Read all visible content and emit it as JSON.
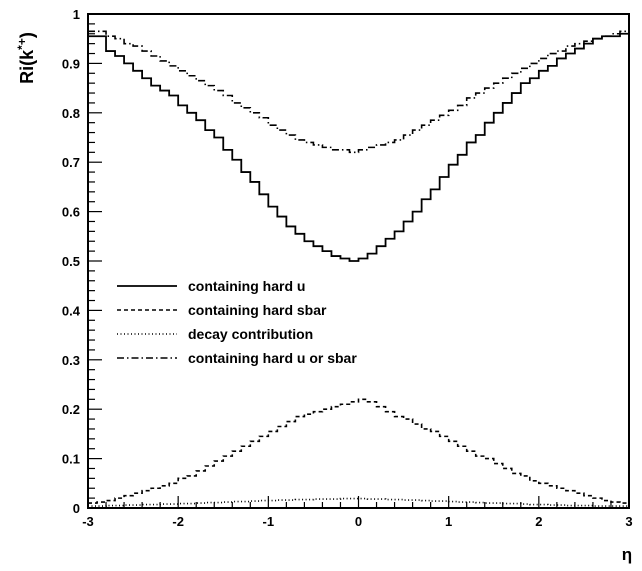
{
  "chart_data": {
    "type": "line",
    "title": "",
    "xlabel": "η",
    "ylabel": "Ri(k*+)",
    "xlim": [
      -3,
      3
    ],
    "ylim": [
      0,
      1
    ],
    "x_ticks": [
      "-3",
      "-2",
      "-1",
      "0",
      "1",
      "2",
      "3"
    ],
    "y_ticks": [
      "0",
      "0.1",
      "0.2",
      "0.3",
      "0.4",
      "0.5",
      "0.6",
      "0.7",
      "0.8",
      "0.9",
      "1"
    ],
    "grid": false,
    "legend": "center-left",
    "bin_width": 0.1,
    "x": [
      -2.95,
      -2.85,
      -2.75,
      -2.65,
      -2.55,
      -2.45,
      -2.35,
      -2.25,
      -2.15,
      -2.05,
      -1.95,
      -1.85,
      -1.75,
      -1.65,
      -1.55,
      -1.45,
      -1.35,
      -1.25,
      -1.15,
      -1.05,
      -0.95,
      -0.85,
      -0.75,
      -0.65,
      -0.55,
      -0.45,
      -0.35,
      -0.25,
      -0.15,
      -0.05,
      0.05,
      0.15,
      0.25,
      0.35,
      0.45,
      0.55,
      0.65,
      0.75,
      0.85,
      0.95,
      1.05,
      1.15,
      1.25,
      1.35,
      1.45,
      1.55,
      1.65,
      1.75,
      1.85,
      1.95,
      2.05,
      2.15,
      2.25,
      2.35,
      2.45,
      2.55,
      2.65,
      2.75,
      2.85,
      2.95
    ],
    "series": [
      {
        "name": "containing hard u",
        "style": "solid",
        "values": [
          0.955,
          0.955,
          0.925,
          0.915,
          0.9,
          0.885,
          0.87,
          0.855,
          0.845,
          0.835,
          0.815,
          0.8,
          0.785,
          0.765,
          0.75,
          0.725,
          0.705,
          0.68,
          0.66,
          0.635,
          0.61,
          0.59,
          0.57,
          0.555,
          0.54,
          0.53,
          0.52,
          0.51,
          0.505,
          0.5,
          0.505,
          0.515,
          0.53,
          0.545,
          0.56,
          0.58,
          0.6,
          0.625,
          0.645,
          0.67,
          0.695,
          0.715,
          0.74,
          0.755,
          0.78,
          0.8,
          0.82,
          0.84,
          0.86,
          0.87,
          0.885,
          0.895,
          0.91,
          0.92,
          0.93,
          0.94,
          0.95,
          0.955,
          0.955,
          0.96
        ]
      },
      {
        "name": "containing hard sbar",
        "style": "dashed",
        "values": [
          0.01,
          0.012,
          0.015,
          0.02,
          0.025,
          0.03,
          0.035,
          0.04,
          0.045,
          0.05,
          0.06,
          0.065,
          0.075,
          0.085,
          0.095,
          0.105,
          0.115,
          0.125,
          0.135,
          0.145,
          0.155,
          0.165,
          0.175,
          0.185,
          0.19,
          0.195,
          0.2,
          0.205,
          0.21,
          0.215,
          0.22,
          0.215,
          0.205,
          0.195,
          0.185,
          0.18,
          0.17,
          0.16,
          0.155,
          0.145,
          0.135,
          0.125,
          0.115,
          0.105,
          0.1,
          0.09,
          0.08,
          0.07,
          0.065,
          0.055,
          0.05,
          0.045,
          0.04,
          0.035,
          0.03,
          0.025,
          0.02,
          0.015,
          0.012,
          0.01
        ]
      },
      {
        "name": "decay contribution",
        "style": "dotted",
        "values": [
          0.004,
          0.004,
          0.005,
          0.005,
          0.006,
          0.006,
          0.007,
          0.007,
          0.008,
          0.008,
          0.009,
          0.009,
          0.01,
          0.011,
          0.011,
          0.012,
          0.013,
          0.013,
          0.014,
          0.015,
          0.015,
          0.016,
          0.016,
          0.017,
          0.017,
          0.018,
          0.018,
          0.018,
          0.019,
          0.019,
          0.019,
          0.018,
          0.018,
          0.017,
          0.017,
          0.016,
          0.016,
          0.015,
          0.014,
          0.014,
          0.013,
          0.012,
          0.012,
          0.011,
          0.01,
          0.01,
          0.009,
          0.009,
          0.008,
          0.007,
          0.007,
          0.006,
          0.006,
          0.005,
          0.005,
          0.005,
          0.004,
          0.004,
          0.004,
          0.004
        ]
      },
      {
        "name": "containing hard u or sbar",
        "style": "dashdot",
        "values": [
          0.965,
          0.965,
          0.955,
          0.95,
          0.94,
          0.935,
          0.925,
          0.915,
          0.905,
          0.895,
          0.885,
          0.875,
          0.865,
          0.855,
          0.845,
          0.835,
          0.82,
          0.81,
          0.8,
          0.79,
          0.775,
          0.765,
          0.755,
          0.745,
          0.74,
          0.735,
          0.73,
          0.725,
          0.725,
          0.72,
          0.725,
          0.73,
          0.735,
          0.74,
          0.745,
          0.755,
          0.765,
          0.775,
          0.785,
          0.795,
          0.805,
          0.815,
          0.83,
          0.84,
          0.85,
          0.86,
          0.87,
          0.88,
          0.89,
          0.9,
          0.91,
          0.92,
          0.925,
          0.935,
          0.94,
          0.945,
          0.95,
          0.955,
          0.96,
          0.965
        ]
      }
    ]
  }
}
